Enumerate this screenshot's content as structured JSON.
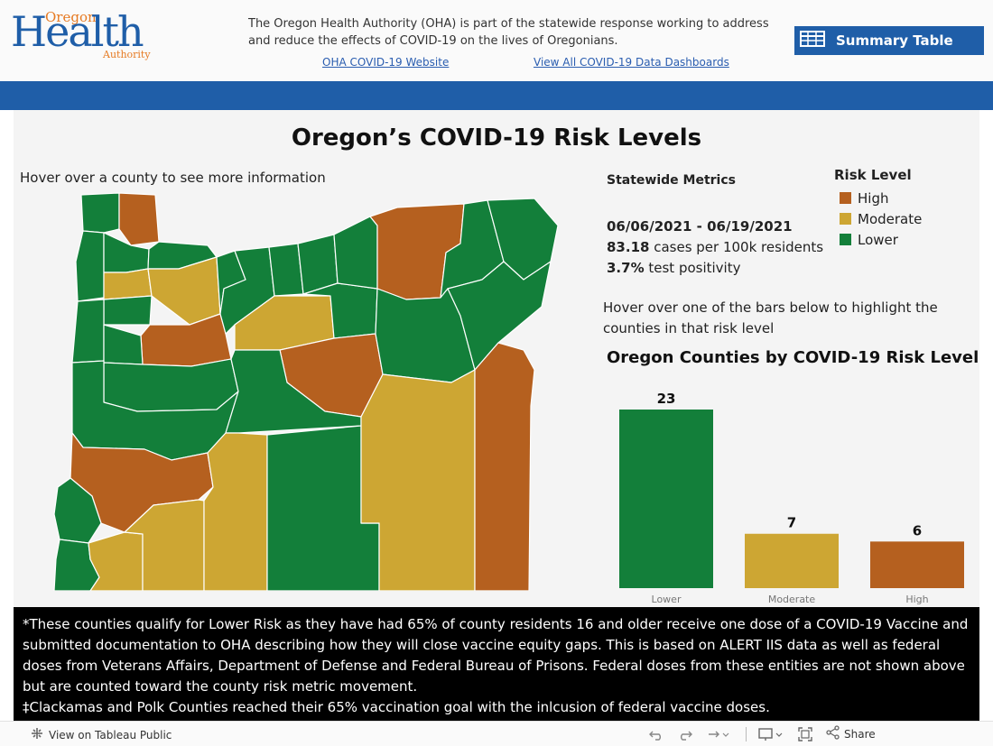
{
  "header": {
    "logo": {
      "top": "Oregon",
      "middle": "Health",
      "bottom": "Authority"
    },
    "intro": "The Oregon Health Authority (OHA) is part of the statewide response working to address and reduce the effects of COVID-19 on the lives of Oregonians.",
    "link_oha": "OHA COVID-19 Website",
    "link_dashboards": "View All COVID-19 Data Dashboards",
    "summary_button": "Summary Table"
  },
  "main": {
    "title": "Oregon’s COVID-19 Risk Levels",
    "hover_hint": "Hover over a county to see more information",
    "statewide": {
      "title": "Statewide Metrics",
      "date_range": "06/06/2021 - 06/19/2021",
      "cases_value": "83.18",
      "cases_label": " cases per 100k residents",
      "positivity_value": "3.7%",
      "positivity_label": " test positivity"
    },
    "bar_hint": "Hover over one of the bars below to highlight the counties in that risk level",
    "legend": {
      "title": "Risk Level",
      "items": [
        {
          "label": "High",
          "color": "#b5601f"
        },
        {
          "label": "Moderate",
          "color": "#cda633"
        },
        {
          "label": "Lower",
          "color": "#137f3a"
        }
      ]
    }
  },
  "chart_data": {
    "type": "bar",
    "title": "Oregon Counties by COVID-19 Risk Level",
    "categories": [
      "Lower",
      "Moderate",
      "High"
    ],
    "values": [
      23,
      7,
      6
    ],
    "colors": [
      "#137f3a",
      "#cda633",
      "#b5601f"
    ],
    "ylim": [
      0,
      23
    ],
    "grid": false
  },
  "footnote": {
    "line1": "*These counties qualify for Lower Risk as they have had 65% of county residents 16 and older receive one dose of a COVID-19 Vaccine and submitted documentation to OHA describing how they will close vaccine equity gaps. This is based on ALERT IIS data as well as federal doses from Veterans Affairs, Department of Defense and Federal Bureau of Prisons. Federal doses from these entities are not shown above but are counted toward the county risk metric movement.",
    "line2": "‡Clackamas and Polk Counties reached their 65% vaccination goal with the inlcusion of federal vaccine doses."
  },
  "toolbar": {
    "view_label": "View on Tableau Public",
    "share_label": "Share"
  },
  "map": {
    "colors": {
      "high": "#b5601f",
      "moderate": "#cda633",
      "lower": "#137f3a"
    }
  }
}
